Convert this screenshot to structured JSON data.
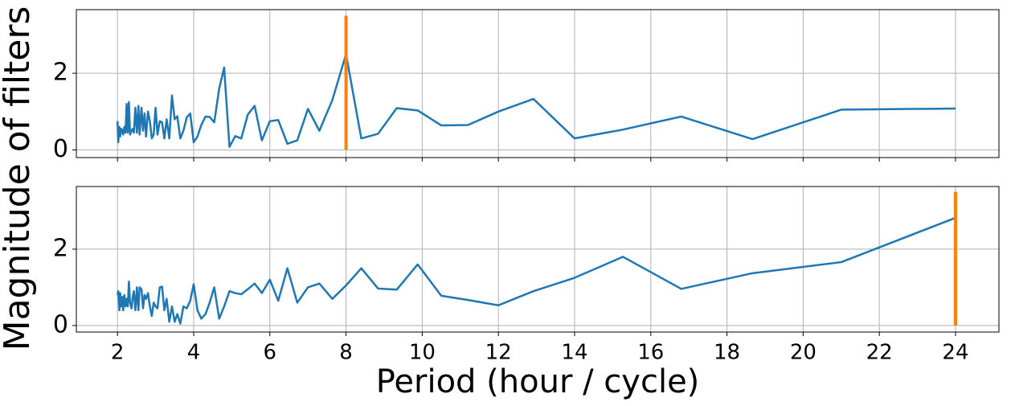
{
  "chart_data": [
    {
      "type": "line",
      "ylabel": "Magnitude of filters",
      "x": [
        2,
        2.02,
        2.05,
        2.07,
        2.1,
        2.13,
        2.15,
        2.18,
        2.21,
        2.24,
        2.27,
        2.3,
        2.33,
        2.37,
        2.4,
        2.43,
        2.47,
        2.51,
        2.55,
        2.58,
        2.63,
        2.67,
        2.71,
        2.75,
        2.8,
        2.85,
        2.9,
        2.95,
        3,
        3.05,
        3.11,
        3.17,
        3.23,
        3.29,
        3.36,
        3.43,
        3.5,
        3.57,
        3.65,
        3.73,
        3.82,
        3.91,
        4,
        4.1,
        4.2,
        4.31,
        4.42,
        4.54,
        4.67,
        4.8,
        4.94,
        5.09,
        5.25,
        5.42,
        5.6,
        5.79,
        6,
        6.22,
        6.46,
        6.72,
        7,
        7.3,
        7.64,
        8,
        8.4,
        8.84,
        9.33,
        9.88,
        10.5,
        11.2,
        12,
        12.92,
        14,
        15.27,
        16.8,
        18.67,
        21,
        24
      ],
      "series": [
        {
          "color": "#1f77b4",
          "values": [
            0.75,
            0.2,
            0.6,
            0.35,
            0.55,
            0.5,
            0.4,
            0.6,
            0.45,
            1.2,
            0.45,
            1.25,
            0.4,
            0.5,
            0.55,
            0.45,
            1.1,
            0.45,
            1.15,
            0.4,
            1.1,
            0.5,
            0.95,
            0.35,
            1.0,
            0.75,
            0.3,
            0.4,
            1.1,
            0.4,
            0.75,
            0.72,
            0.3,
            0.8,
            0.3,
            1.42,
            0.8,
            0.88,
            0.3,
            0.5,
            0.85,
            0.95,
            0.2,
            0.35,
            0.65,
            0.87,
            0.86,
            0.72,
            1.6,
            2.15,
            0.08,
            0.36,
            0.3,
            0.92,
            1.15,
            0.25,
            0.75,
            0.78,
            0.16,
            0.25,
            1.07,
            0.5,
            1.3,
            2.5,
            0.3,
            0.42,
            1.09,
            1.03,
            0.64,
            0.65,
            1.0,
            1.33,
            0.3,
            0.53,
            0.87,
            0.28,
            1.05,
            1.08
          ]
        }
      ],
      "vline": {
        "x": 8,
        "ymin": 0,
        "ymax": 3.5,
        "color": "#ff7f0e"
      },
      "xlim": [
        0.92,
        25.14
      ],
      "xticks": [
        2,
        4,
        6,
        8,
        10,
        12,
        14,
        16,
        18,
        20,
        22,
        24
      ],
      "ylim": [
        -0.2,
        3.66
      ],
      "yticks": [
        0,
        2
      ],
      "grid": true
    },
    {
      "type": "line",
      "xlabel": "Period (hour / cycle)",
      "x": [
        2,
        2.02,
        2.05,
        2.07,
        2.1,
        2.13,
        2.15,
        2.18,
        2.21,
        2.24,
        2.27,
        2.3,
        2.33,
        2.37,
        2.4,
        2.43,
        2.47,
        2.51,
        2.55,
        2.58,
        2.63,
        2.67,
        2.71,
        2.75,
        2.8,
        2.85,
        2.9,
        2.95,
        3,
        3.05,
        3.11,
        3.17,
        3.23,
        3.29,
        3.36,
        3.43,
        3.5,
        3.57,
        3.65,
        3.73,
        3.82,
        3.91,
        4,
        4.1,
        4.2,
        4.31,
        4.42,
        4.54,
        4.67,
        4.8,
        4.94,
        5.09,
        5.25,
        5.42,
        5.6,
        5.79,
        6,
        6.22,
        6.46,
        6.72,
        7,
        7.3,
        7.64,
        8,
        8.4,
        8.84,
        9.33,
        9.88,
        10.5,
        11.2,
        12,
        12.92,
        14,
        15.27,
        16.8,
        18.67,
        21,
        24
      ],
      "series": [
        {
          "color": "#1f77b4",
          "values": [
            0.8,
            0.9,
            0.4,
            0.85,
            0.5,
            0.75,
            0.4,
            0.8,
            0.5,
            0.7,
            0.5,
            1.15,
            0.6,
            0.45,
            0.75,
            0.9,
            0.4,
            1.0,
            0.4,
            1.0,
            0.95,
            0.45,
            0.8,
            0.7,
            0.85,
            0.5,
            0.25,
            0.6,
            0.5,
            0.45,
            1.0,
            1.02,
            0.4,
            0.7,
            0.1,
            0.5,
            0.1,
            0.3,
            0.05,
            0.5,
            0.45,
            0.65,
            1.08,
            0.4,
            0.18,
            0.3,
            0.6,
            1.0,
            0.18,
            0.5,
            0.9,
            0.85,
            0.82,
            0.95,
            1.1,
            0.85,
            1.2,
            0.65,
            1.5,
            0.6,
            1.0,
            1.1,
            0.7,
            1.05,
            1.5,
            0.97,
            0.94,
            1.6,
            0.78,
            0.67,
            0.53,
            0.9,
            1.25,
            1.8,
            0.96,
            1.37,
            1.66,
            2.82
          ]
        }
      ],
      "vline": {
        "x": 24,
        "ymin": 0,
        "ymax": 3.5,
        "color": "#ff7f0e"
      },
      "xlim": [
        0.92,
        25.14
      ],
      "xticks": [
        2,
        4,
        6,
        8,
        10,
        12,
        14,
        16,
        18,
        20,
        22,
        24
      ],
      "ylim": [
        -0.17,
        3.64
      ],
      "yticks": [
        0,
        2
      ],
      "grid": true
    }
  ]
}
